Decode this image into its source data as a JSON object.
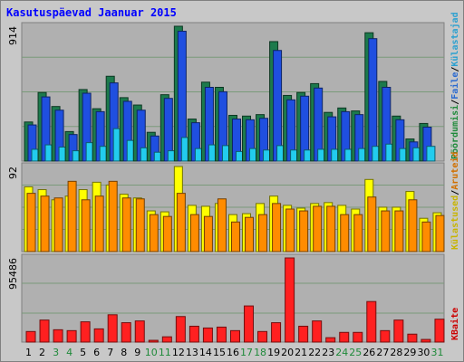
{
  "title": "Kasutuspäevad Jaanuar 2015",
  "colors": {
    "background": "#c8c8c8",
    "plot": "#b0b0b0",
    "grid": "#7a9a7a",
    "weekday_label": "#000000",
    "weekend_label": "#1f8a3a"
  },
  "right_labels": {
    "top": [
      {
        "text": "Pöördumisi",
        "color": "#1f8a3a"
      },
      {
        "text": "/",
        "color": "#000000"
      },
      {
        "text": "Faile",
        "color": "#2a6ad0"
      },
      {
        "text": "/",
        "color": "#000000"
      },
      {
        "text": "Külastajad",
        "color": "#2aa0d0"
      }
    ],
    "middle": [
      {
        "text": "Külastused",
        "color": "#c8b400"
      },
      {
        "text": "/",
        "color": "#000000"
      },
      {
        "text": "Aruteid",
        "color": "#d07000"
      }
    ],
    "bottom": [
      {
        "text": "KBaite",
        "color": "#cc0000"
      }
    ]
  },
  "chart_data": [
    {
      "type": "bar",
      "panel": "hits-files-pages",
      "ymax_label": "914",
      "ylim": [
        0,
        914
      ],
      "grid": true,
      "categories": [
        "1",
        "2",
        "3",
        "4",
        "5",
        "6",
        "7",
        "8",
        "9",
        "10",
        "11",
        "12",
        "13",
        "14",
        "15",
        "16",
        "17",
        "18",
        "19",
        "20",
        "21",
        "22",
        "23",
        "24",
        "25",
        "26",
        "27",
        "28",
        "29",
        "30",
        "31"
      ],
      "weekend": [
        "3",
        "4",
        "10",
        "11",
        "17",
        "18",
        "24",
        "25",
        "31"
      ],
      "series": [
        {
          "name": "Pöördumisi",
          "color": "#1c7a4c",
          "values": [
            265,
            465,
            370,
            200,
            485,
            355,
            575,
            430,
            380,
            195,
            450,
            914,
            285,
            535,
            500,
            310,
            305,
            315,
            810,
            445,
            465,
            525,
            330,
            360,
            340,
            870,
            540,
            305,
            150,
            255,
            0
          ]
        },
        {
          "name": "Faile",
          "color": "#1f4fe0",
          "values": [
            245,
            435,
            345,
            180,
            460,
            335,
            530,
            405,
            345,
            170,
            425,
            880,
            260,
            500,
            470,
            285,
            280,
            290,
            750,
            415,
            440,
            495,
            300,
            335,
            315,
            830,
            500,
            280,
            130,
            230,
            0
          ]
        },
        {
          "name": "Külastajad",
          "color": "#22ccee",
          "values": [
            80,
            110,
            95,
            70,
            125,
            100,
            220,
            140,
            90,
            60,
            70,
            160,
            85,
            110,
            105,
            65,
            85,
            75,
            105,
            75,
            75,
            80,
            80,
            80,
            85,
            100,
            115,
            85,
            90,
            100,
            0
          ]
        }
      ]
    },
    {
      "type": "bar",
      "panel": "visits-sites",
      "ymax_label": "92",
      "ylim": [
        0,
        92
      ],
      "grid": true,
      "categories": [
        "1",
        "2",
        "3",
        "4",
        "5",
        "6",
        "7",
        "8",
        "9",
        "10",
        "11",
        "12",
        "13",
        "14",
        "15",
        "16",
        "17",
        "18",
        "19",
        "20",
        "21",
        "22",
        "23",
        "24",
        "25",
        "26",
        "27",
        "28",
        "29",
        "30",
        "31"
      ],
      "series": [
        {
          "name": "Külastused",
          "color": "#ffff00",
          "values": [
            70,
            67,
            56,
            60,
            67,
            75,
            72,
            62,
            58,
            44,
            43,
            92,
            50,
            49,
            52,
            40,
            41,
            52,
            60,
            50,
            47,
            52,
            53,
            50,
            46,
            78,
            48,
            48,
            65,
            36,
            42
          ]
        },
        {
          "name": "Aruteid",
          "color": "#ff8c00",
          "values": [
            63,
            60,
            58,
            76,
            56,
            60,
            76,
            58,
            57,
            40,
            38,
            63,
            40,
            38,
            57,
            32,
            37,
            40,
            52,
            46,
            44,
            49,
            49,
            40,
            40,
            59,
            44,
            44,
            56,
            32,
            39
          ]
        }
      ]
    },
    {
      "type": "bar",
      "panel": "kbytes",
      "ymax_label": "95486",
      "ylim": [
        0,
        95486
      ],
      "grid": true,
      "categories": [
        "1",
        "2",
        "3",
        "4",
        "5",
        "6",
        "7",
        "8",
        "9",
        "10",
        "11",
        "12",
        "13",
        "14",
        "15",
        "16",
        "17",
        "18",
        "19",
        "20",
        "21",
        "22",
        "23",
        "24",
        "25",
        "26",
        "27",
        "28",
        "29",
        "30",
        "31"
      ],
      "series": [
        {
          "name": "KBaite",
          "color": "#ff2020",
          "values": [
            12000,
            25000,
            14000,
            13000,
            23000,
            15000,
            31000,
            22000,
            24000,
            2000,
            6000,
            29000,
            18000,
            16000,
            17000,
            13000,
            41000,
            12000,
            22000,
            95486,
            18000,
            24000,
            5000,
            11000,
            11000,
            46000,
            13000,
            25000,
            9000,
            3000,
            26000
          ]
        }
      ]
    }
  ]
}
